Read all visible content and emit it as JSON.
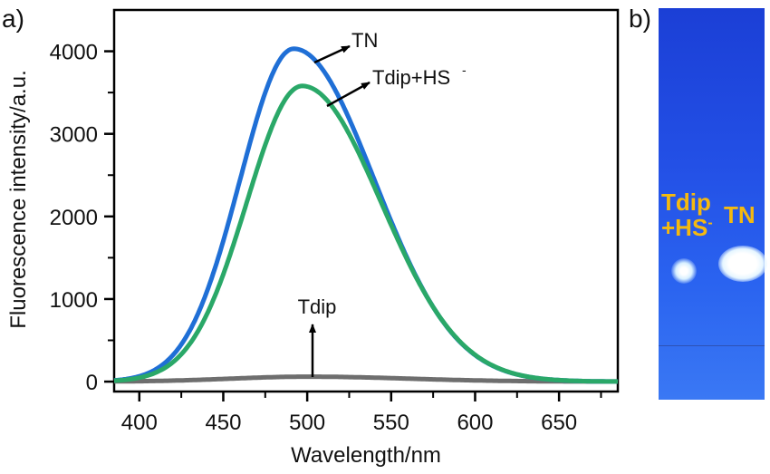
{
  "panel_labels": {
    "a": "a)",
    "b": "b)"
  },
  "chart_data": {
    "type": "line",
    "xlabel": "Wavelength/nm",
    "ylabel": "Fluorescence intensity/a.u.",
    "xlim": [
      385,
      685
    ],
    "ylim": [
      -120,
      4500
    ],
    "xticks": [
      400,
      450,
      500,
      550,
      600,
      650
    ],
    "yticks": [
      0,
      1000,
      2000,
      3000,
      4000
    ],
    "grid": false,
    "series": [
      {
        "name": "TN",
        "color": "#1f6fd6",
        "peak_x": 492,
        "peak_y": 4030,
        "sigma_left": 32,
        "sigma_right": 48
      },
      {
        "name": "Tdip+HS-",
        "color": "#2aa868",
        "peak_x": 497,
        "peak_y": 3580,
        "sigma_left": 33,
        "sigma_right": 47
      },
      {
        "name": "Tdip",
        "color": "#6e6e6e",
        "peak_x": 500,
        "peak_y": 60,
        "sigma_left": 45,
        "sigma_right": 60
      }
    ],
    "annotations": [
      {
        "text": "TN",
        "superscript": ""
      },
      {
        "text": "Tdip+HS",
        "superscript": "-"
      },
      {
        "text": "Tdip",
        "superscript": ""
      }
    ]
  },
  "plate": {
    "label_tdip_line1": "Tdip",
    "label_tdip_line2": "+HS",
    "label_tdip_sup": "-",
    "label_tn": "TN"
  }
}
